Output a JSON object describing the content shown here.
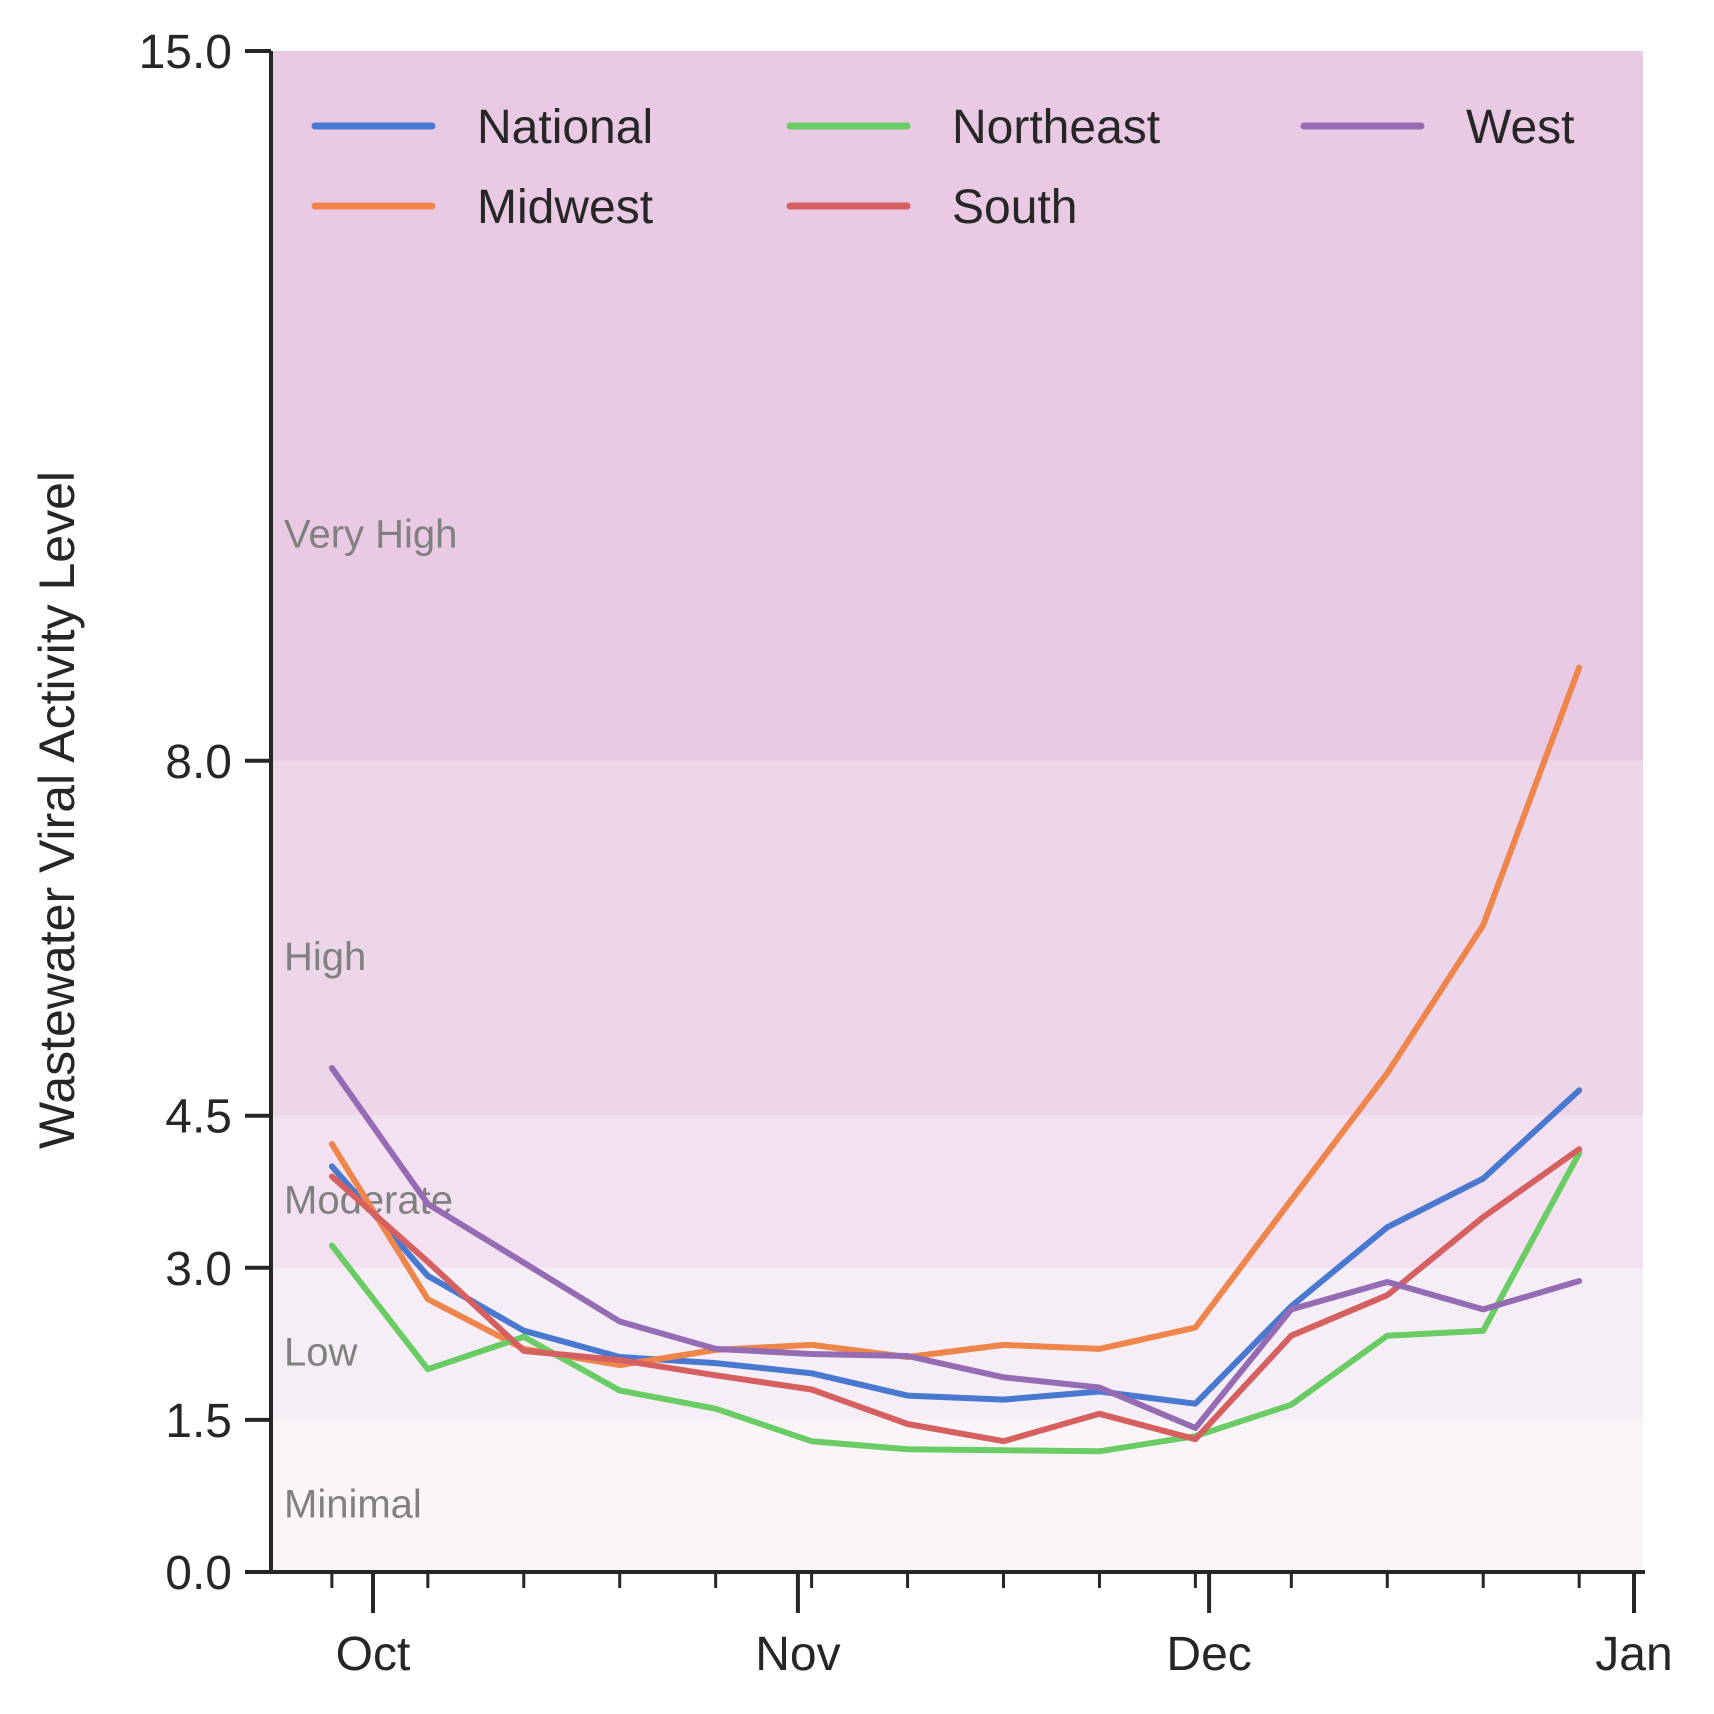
{
  "chart_data": {
    "type": "line",
    "title": "",
    "xlabel": "",
    "ylabel": "Wastewater Viral Activity Level",
    "ylim": [
      0.0,
      15.0
    ],
    "xlim": [
      "2024-09-24",
      "2025-01-01"
    ],
    "yticks": [
      {
        "value": 0.0,
        "label": "0.0"
      },
      {
        "value": 1.5,
        "label": "1.5"
      },
      {
        "value": 3.0,
        "label": "3.0"
      },
      {
        "value": 4.5,
        "label": "4.5"
      },
      {
        "value": 8.0,
        "label": "8.0"
      },
      {
        "value": 15.0,
        "label": "15.0"
      }
    ],
    "xticks_major": [
      {
        "date": "10-01",
        "label": "Oct"
      },
      {
        "date": "11-01",
        "label": "Nov"
      },
      {
        "date": "12-01",
        "label": "Dec"
      },
      {
        "date": "01-01",
        "label": "Jan"
      }
    ],
    "x": [
      "09-28",
      "10-05",
      "10-12",
      "10-19",
      "10-26",
      "11-02",
      "11-09",
      "11-16",
      "11-23",
      "11-30",
      "12-07",
      "12-14",
      "12-21",
      "12-28"
    ],
    "series": [
      {
        "name": "National",
        "color": "#4878d0",
        "values": [
          4.0,
          2.92,
          2.38,
          2.12,
          2.06,
          1.96,
          1.74,
          1.7,
          1.78,
          1.66,
          2.62,
          3.4,
          3.88,
          4.75
        ]
      },
      {
        "name": "Midwest",
        "color": "#ee854a",
        "values": [
          4.22,
          2.69,
          2.2,
          2.04,
          2.19,
          2.24,
          2.12,
          2.24,
          2.2,
          2.41,
          3.67,
          4.92,
          6.38,
          8.92
        ]
      },
      {
        "name": "Northeast",
        "color": "#6acc64",
        "values": [
          3.22,
          2.0,
          2.32,
          1.79,
          1.61,
          1.29,
          1.21,
          1.2,
          1.19,
          1.34,
          1.65,
          2.33,
          2.38,
          4.13
        ]
      },
      {
        "name": "South",
        "color": "#d65f5f",
        "values": [
          3.9,
          3.06,
          2.18,
          2.09,
          1.94,
          1.8,
          1.46,
          1.29,
          1.56,
          1.31,
          2.33,
          2.73,
          3.5,
          4.17
        ]
      },
      {
        "name": "West",
        "color": "#956cb4",
        "values": [
          4.97,
          3.63,
          3.05,
          2.47,
          2.2,
          2.15,
          2.13,
          1.92,
          1.82,
          1.42,
          2.59,
          2.86,
          2.59,
          2.87
        ]
      }
    ],
    "bands": [
      {
        "label": "Minimal",
        "from": 0.0,
        "to": 1.5,
        "color": "#fbf5fa"
      },
      {
        "label": "Low",
        "from": 1.5,
        "to": 3.0,
        "color": "#f6eef6"
      },
      {
        "label": "Moderate",
        "from": 3.0,
        "to": 4.5,
        "color": "#f3e1f1"
      },
      {
        "label": "High",
        "from": 4.5,
        "to": 8.0,
        "color": "#eed6ea"
      },
      {
        "label": "Very High",
        "from": 8.0,
        "to": 15.0,
        "color": "#e9c9e3"
      }
    ],
    "legend": {
      "position": "top",
      "columns": 3
    },
    "grid": false
  }
}
